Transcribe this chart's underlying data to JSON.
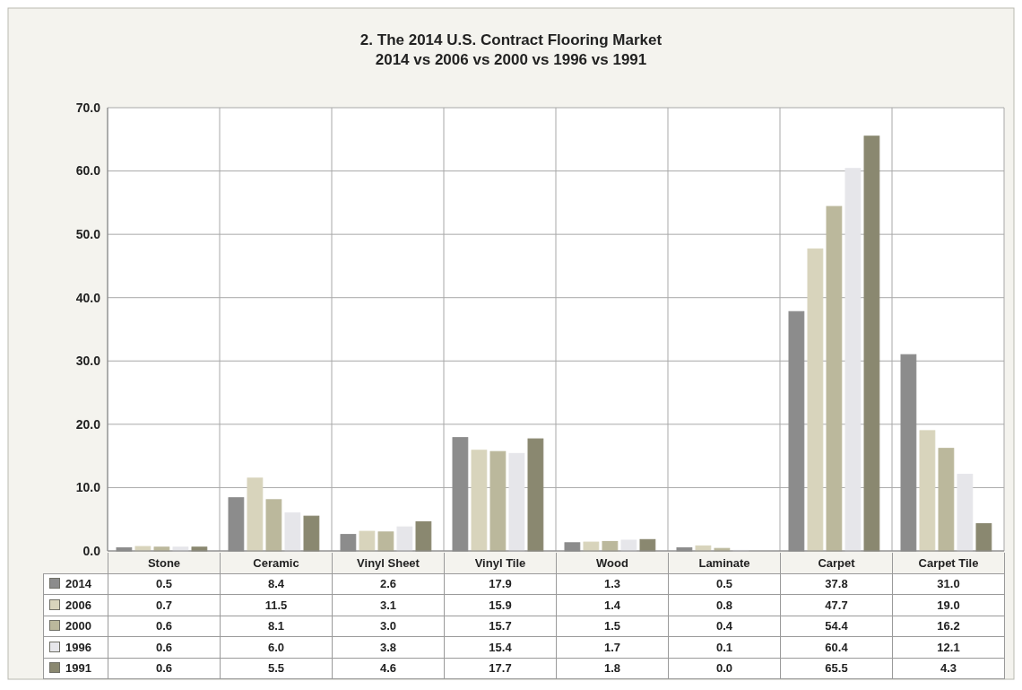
{
  "chart_data": {
    "type": "bar",
    "title": "2. The 2014 U.S. Contract Flooring Market",
    "subtitle": "2014 vs 2006 vs 2000 vs 1996 vs 1991",
    "categories": [
      "Stone",
      "Ceramic",
      "Vinyl Sheet",
      "Vinyl Tile",
      "Wood",
      "Laminate",
      "Carpet",
      "Carpet Tile"
    ],
    "series": [
      {
        "name": "2014",
        "color": "#8c8c8c",
        "values": [
          0.5,
          8.4,
          2.6,
          17.9,
          1.3,
          0.5,
          37.8,
          31.0
        ],
        "value_labels": [
          "0.5",
          "8.4",
          "2.6",
          "17.9",
          "1.3",
          "0.5",
          "37.8",
          "31.0"
        ]
      },
      {
        "name": "2006",
        "color": "#d8d4bc",
        "values": [
          0.7,
          11.5,
          3.1,
          15.9,
          1.4,
          0.8,
          47.7,
          19.0
        ],
        "value_labels": [
          "0.7",
          "11.5",
          "3.1",
          "15.9",
          "1.4",
          "0.8",
          "47.7",
          "19.0"
        ]
      },
      {
        "name": "2000",
        "color": "#bbb89c",
        "values": [
          0.6,
          8.1,
          3.0,
          15.7,
          1.5,
          0.4,
          54.4,
          16.2
        ],
        "value_labels": [
          "0.6",
          "8.1",
          "3.0",
          "15.7",
          "1.5",
          "0.4",
          "54.4",
          "16.2"
        ]
      },
      {
        "name": "1996",
        "color": "#e6e6ea",
        "values": [
          0.6,
          6.0,
          3.8,
          15.4,
          1.7,
          0.1,
          60.4,
          12.1
        ],
        "value_labels": [
          "0.6",
          "6.0",
          "3.8",
          "15.4",
          "1.7",
          "0.1",
          "60.4",
          "12.1"
        ]
      },
      {
        "name": "1991",
        "color": "#8a8870",
        "values": [
          0.6,
          5.5,
          4.6,
          17.7,
          1.8,
          0.0,
          65.5,
          4.3
        ],
        "value_labels": [
          "0.6",
          "5.5",
          "4.6",
          "17.7",
          "1.8",
          "0.0",
          "65.5",
          "4.3"
        ]
      }
    ],
    "ylim": [
      0,
      70
    ],
    "yticks": [
      {
        "value": 0,
        "label": "0.0"
      },
      {
        "value": 10,
        "label": "10.0"
      },
      {
        "value": 20,
        "label": "20.0"
      },
      {
        "value": 30,
        "label": "30.0"
      },
      {
        "value": 40,
        "label": "40.0"
      },
      {
        "value": 50,
        "label": "50.0"
      },
      {
        "value": 60,
        "label": "60.0"
      },
      {
        "value": 70,
        "label": "70.0"
      }
    ],
    "grid": true,
    "legend": "bottom left"
  }
}
